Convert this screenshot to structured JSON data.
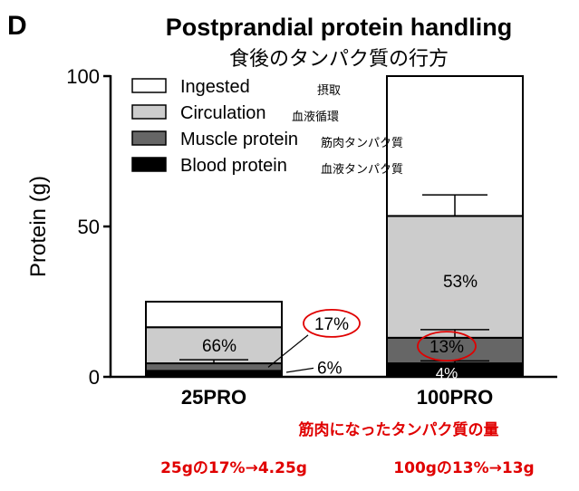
{
  "panel_letter": "D",
  "chart_data": {
    "type": "bar",
    "stacked": true,
    "title": "Postprandial protein handling",
    "subtitle": "食後のタンパク質の行方",
    "xlabel": "",
    "ylabel": "Protein (g)",
    "ylim": [
      0,
      100
    ],
    "yticks": [
      "0",
      "50",
      "100"
    ],
    "categories": [
      "25PRO",
      "100PRO"
    ],
    "legend": {
      "placement": "top-left",
      "entries": [
        {
          "label": "Ingested",
          "note": "摂取",
          "color": "#ffffff"
        },
        {
          "label": "Circulation",
          "note": "血液循環",
          "color": "#cccccc"
        },
        {
          "label": "Muscle protein",
          "note": "筋肉タンパク質",
          "color": "#666666"
        },
        {
          "label": "Blood protein",
          "note": "血液タンパク質",
          "color": "#000000"
        }
      ]
    },
    "series": [
      {
        "name": "Blood protein",
        "values": [
          2,
          4.5
        ]
      },
      {
        "name": "Muscle protein",
        "values": [
          2.5,
          8.5
        ]
      },
      {
        "name": "Circulation",
        "values": [
          12,
          40.5
        ]
      },
      {
        "name": "Ingested",
        "values": [
          8.5,
          46.5
        ]
      }
    ],
    "error_bars": [
      {
        "category": "25PRO",
        "level": 16.5,
        "error": 0
      },
      {
        "category": "25PRO",
        "level": 4.5,
        "error": 1.2
      },
      {
        "category": "100PRO",
        "level": 53.5,
        "error": 7
      },
      {
        "category": "100PRO",
        "level": 13,
        "error": 2.7
      },
      {
        "category": "100PRO",
        "level": 4.5,
        "error": 0.8
      }
    ],
    "annotations": [
      {
        "category": "25PRO",
        "text": "66%",
        "level": 10.5,
        "style": "plain"
      },
      {
        "category": "25PRO",
        "text": "17%",
        "level": 11.5,
        "style": "circled-outside"
      },
      {
        "category": "25PRO",
        "text": "6%",
        "level": 3.5,
        "style": "outside-leader"
      },
      {
        "category": "100PRO",
        "text": "53%",
        "level": 32,
        "style": "plain"
      },
      {
        "category": "100PRO",
        "text": "13%",
        "level": 10.5,
        "style": "circled"
      },
      {
        "category": "100PRO",
        "text": "4%",
        "level": 2.8,
        "style": "white"
      }
    ]
  },
  "notes": {
    "heading": "筋肉になったタンパク質の量",
    "left": "25gの17%→4.25g",
    "right": "100gの13%→13g"
  }
}
